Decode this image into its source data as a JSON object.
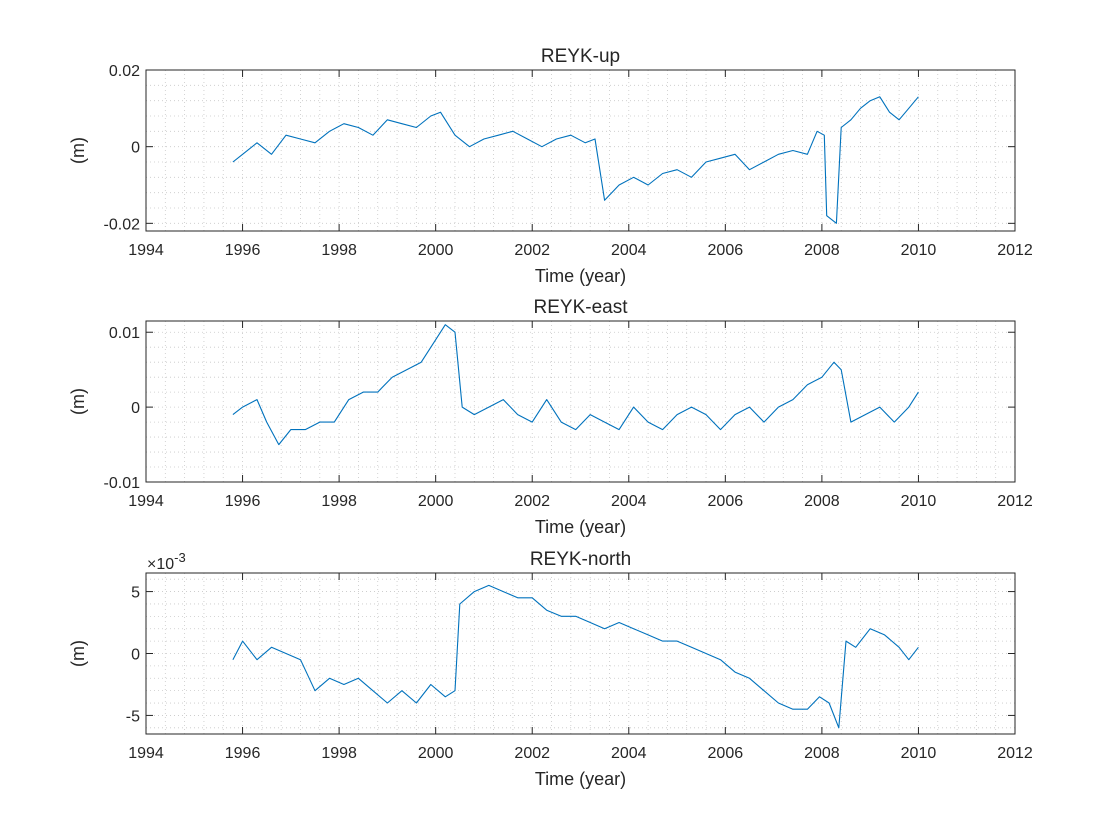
{
  "chart_data": [
    {
      "type": "line",
      "title": "REYK-up",
      "xlabel": "Time (year)",
      "ylabel": "(m)",
      "xlim": [
        1994,
        2012
      ],
      "ylim": [
        -0.022,
        0.02
      ],
      "xticks": [
        1994,
        1996,
        1998,
        2000,
        2002,
        2004,
        2006,
        2008,
        2010,
        2012
      ],
      "yticks": [
        -0.02,
        0,
        0.02
      ],
      "xtick_labels": [
        "1994",
        "1996",
        "1998",
        "2000",
        "2002",
        "2004",
        "2006",
        "2008",
        "2010",
        "2012"
      ],
      "ytick_labels": [
        "-0.02",
        "0",
        "0.02"
      ],
      "exponent_label": "",
      "grid": "minor-dotted",
      "color": "#0072BD",
      "x": [
        1995.8,
        1996.0,
        1996.3,
        1996.6,
        1996.9,
        1997.2,
        1997.5,
        1997.8,
        1998.1,
        1998.4,
        1998.7,
        1999.0,
        1999.3,
        1999.6,
        1999.9,
        2000.1,
        2000.4,
        2000.7,
        2001.0,
        2001.3,
        2001.6,
        2001.9,
        2002.2,
        2002.5,
        2002.8,
        2003.1,
        2003.3,
        2003.5,
        2003.8,
        2004.1,
        2004.4,
        2004.7,
        2005.0,
        2005.3,
        2005.6,
        2005.9,
        2006.2,
        2006.5,
        2006.8,
        2007.1,
        2007.4,
        2007.7,
        2007.9,
        2008.05,
        2008.1,
        2008.3,
        2008.4,
        2008.6,
        2008.8,
        2009.0,
        2009.2,
        2009.4,
        2009.6,
        2009.8,
        2010.0
      ],
      "y": [
        -0.004,
        -0.002,
        0.001,
        -0.002,
        0.003,
        0.002,
        0.001,
        0.004,
        0.006,
        0.005,
        0.003,
        0.007,
        0.006,
        0.005,
        0.008,
        0.009,
        0.003,
        0.0,
        0.002,
        0.003,
        0.004,
        0.002,
        0.0,
        0.002,
        0.003,
        0.001,
        0.002,
        -0.014,
        -0.01,
        -0.008,
        -0.01,
        -0.007,
        -0.006,
        -0.008,
        -0.004,
        -0.003,
        -0.002,
        -0.006,
        -0.004,
        -0.002,
        -0.001,
        -0.002,
        0.004,
        0.003,
        -0.018,
        -0.02,
        0.005,
        0.007,
        0.01,
        0.012,
        0.013,
        0.009,
        0.007,
        0.01,
        0.013
      ]
    },
    {
      "type": "line",
      "title": "REYK-east",
      "xlabel": "Time (year)",
      "ylabel": "(m)",
      "xlim": [
        1994,
        2012
      ],
      "ylim": [
        -0.01,
        0.0115
      ],
      "xticks": [
        1994,
        1996,
        1998,
        2000,
        2002,
        2004,
        2006,
        2008,
        2010,
        2012
      ],
      "yticks": [
        -0.01,
        0,
        0.01
      ],
      "xtick_labels": [
        "1994",
        "1996",
        "1998",
        "2000",
        "2002",
        "2004",
        "2006",
        "2008",
        "2010",
        "2012"
      ],
      "ytick_labels": [
        "-0.01",
        "0",
        "0.01"
      ],
      "exponent_label": "",
      "grid": "minor-dotted",
      "color": "#0072BD",
      "x": [
        1995.8,
        1996.0,
        1996.3,
        1996.5,
        1996.75,
        1997.0,
        1997.3,
        1997.6,
        1997.9,
        1998.2,
        1998.5,
        1998.8,
        1999.1,
        1999.4,
        1999.7,
        2000.0,
        2000.2,
        2000.4,
        2000.55,
        2000.8,
        2001.1,
        2001.4,
        2001.7,
        2002.0,
        2002.3,
        2002.6,
        2002.9,
        2003.2,
        2003.5,
        2003.8,
        2004.1,
        2004.4,
        2004.7,
        2005.0,
        2005.3,
        2005.6,
        2005.9,
        2006.2,
        2006.5,
        2006.8,
        2007.1,
        2007.4,
        2007.7,
        2008.0,
        2008.25,
        2008.4,
        2008.6,
        2008.9,
        2009.2,
        2009.5,
        2009.8,
        2010.0
      ],
      "y": [
        -0.001,
        0.0,
        0.001,
        -0.002,
        -0.005,
        -0.003,
        -0.003,
        -0.002,
        -0.002,
        0.001,
        0.002,
        0.002,
        0.004,
        0.005,
        0.006,
        0.009,
        0.011,
        0.01,
        0.0,
        -0.001,
        0.0,
        0.001,
        -0.001,
        -0.002,
        0.001,
        -0.002,
        -0.003,
        -0.001,
        -0.002,
        -0.003,
        0.0,
        -0.002,
        -0.003,
        -0.001,
        0.0,
        -0.001,
        -0.003,
        -0.001,
        0.0,
        -0.002,
        0.0,
        0.001,
        0.003,
        0.004,
        0.006,
        0.005,
        -0.002,
        -0.001,
        0.0,
        -0.002,
        0.0,
        0.002
      ]
    },
    {
      "type": "line",
      "title": "REYK-north",
      "xlabel": "Time (year)",
      "ylabel": "(m)",
      "xlim": [
        1994,
        2012
      ],
      "ylim": [
        -6.5,
        6.5
      ],
      "xticks": [
        1994,
        1996,
        1998,
        2000,
        2002,
        2004,
        2006,
        2008,
        2010,
        2012
      ],
      "yticks": [
        -5,
        0,
        5
      ],
      "xtick_labels": [
        "1994",
        "1996",
        "1998",
        "2000",
        "2002",
        "2004",
        "2006",
        "2008",
        "2010",
        "2012"
      ],
      "ytick_labels": [
        "-5",
        "0",
        "5"
      ],
      "exponent_label": "×10",
      "exponent_power": "-3",
      "grid": "minor-dotted",
      "color": "#0072BD",
      "x": [
        1995.8,
        1996.0,
        1996.3,
        1996.6,
        1996.9,
        1997.2,
        1997.5,
        1997.8,
        1998.1,
        1998.4,
        1998.7,
        1999.0,
        1999.3,
        1999.6,
        1999.9,
        2000.2,
        2000.4,
        2000.5,
        2000.8,
        2001.1,
        2001.4,
        2001.7,
        2002.0,
        2002.3,
        2002.6,
        2002.9,
        2003.2,
        2003.5,
        2003.8,
        2004.1,
        2004.4,
        2004.7,
        2005.0,
        2005.3,
        2005.6,
        2005.9,
        2006.2,
        2006.5,
        2006.8,
        2007.1,
        2007.4,
        2007.7,
        2007.95,
        2008.15,
        2008.35,
        2008.5,
        2008.7,
        2009.0,
        2009.3,
        2009.6,
        2009.8,
        2010.0
      ],
      "y": [
        -0.5,
        1.0,
        -0.5,
        0.5,
        0.0,
        -0.5,
        -3.0,
        -2.0,
        -2.5,
        -2.0,
        -3.0,
        -4.0,
        -3.0,
        -4.0,
        -2.5,
        -3.5,
        -3.0,
        4.0,
        5.0,
        5.5,
        5.0,
        4.5,
        4.5,
        3.5,
        3.0,
        3.0,
        2.5,
        2.0,
        2.5,
        2.0,
        1.5,
        1.0,
        1.0,
        0.5,
        0.0,
        -0.5,
        -1.5,
        -2.0,
        -3.0,
        -4.0,
        -4.5,
        -4.5,
        -3.5,
        -4.0,
        -6.0,
        1.0,
        0.5,
        2.0,
        1.5,
        0.5,
        -0.5,
        0.5
      ]
    }
  ]
}
